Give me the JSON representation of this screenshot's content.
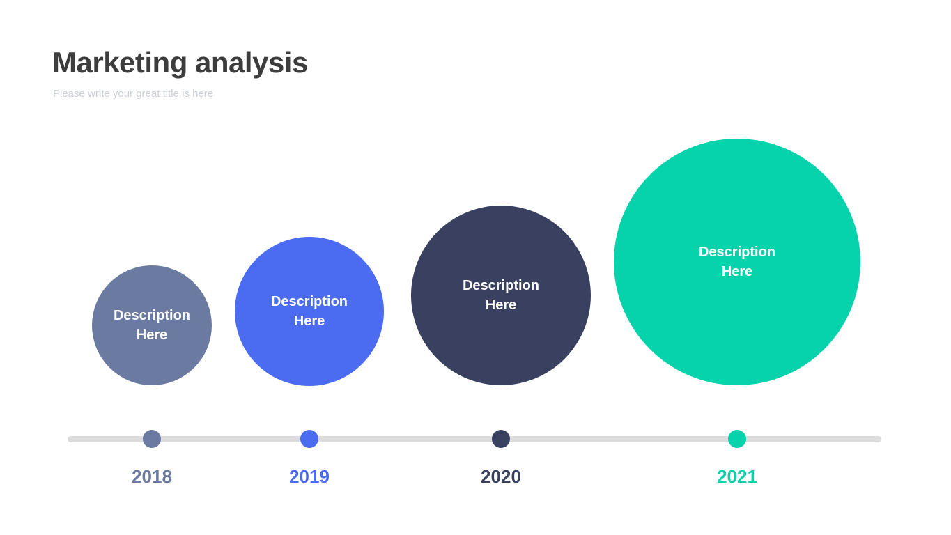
{
  "slide": {
    "title": "Marketing analysis",
    "subtitle": "Please write your great title is here",
    "background_color": "#ffffff",
    "title_color": "#3d3d3d",
    "subtitle_color": "#cbcfd5"
  },
  "timeline": {
    "line_color": "#dcdcdc",
    "bubble_text_color": "#ffffff",
    "items": [
      {
        "year": "2018",
        "description": "Description Here",
        "color": "#6b7aa1"
      },
      {
        "year": "2019",
        "description": "Description Here",
        "color": "#4b6cf0"
      },
      {
        "year": "2020",
        "description": "Description Here",
        "color": "#3a4160"
      },
      {
        "year": "2021",
        "description": "Description Here",
        "color": "#06d3ac"
      }
    ]
  }
}
